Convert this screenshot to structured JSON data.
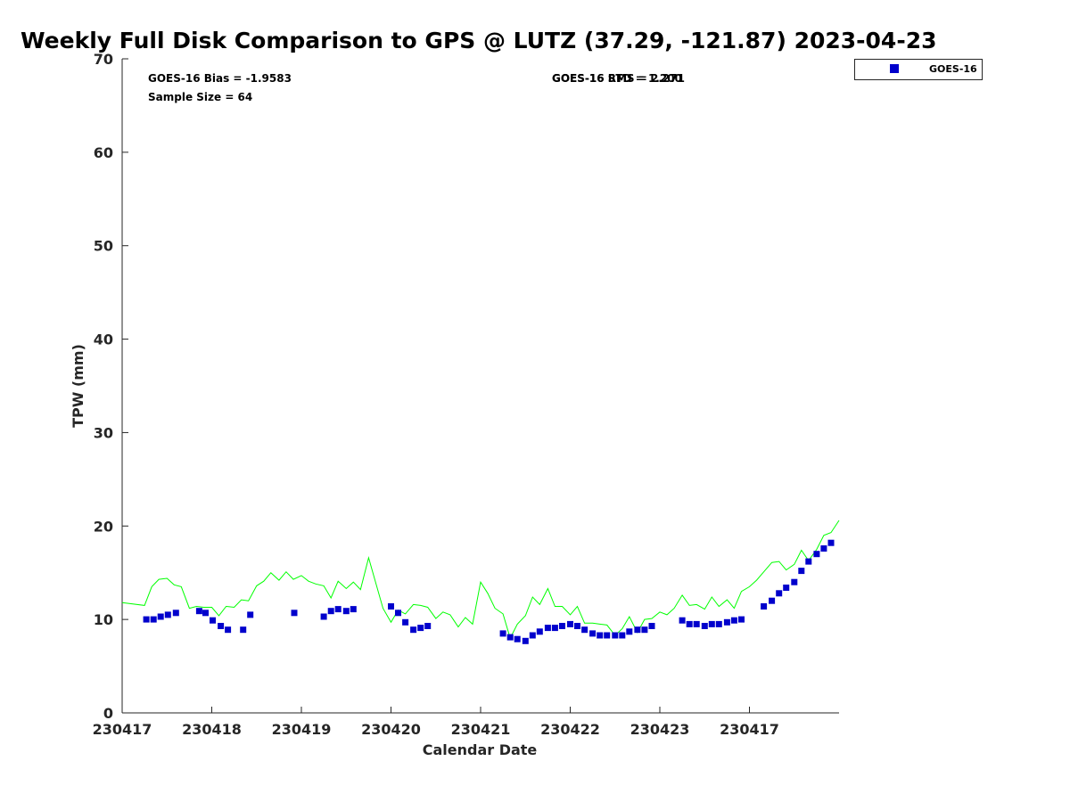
{
  "chart_data": {
    "type": "scatter",
    "title": "Weekly Full Disk Comparison to GPS @ LUTZ (37.29, -121.87) 2023-04-23",
    "xlabel": "Calendar Date",
    "ylabel": "TPW (mm)",
    "ylim": [
      0,
      70
    ],
    "yticks": [
      0,
      10,
      20,
      30,
      40,
      50,
      60,
      70
    ],
    "xlim": [
      0,
      8
    ],
    "xticks": [
      0,
      1,
      2,
      3,
      4,
      5,
      6,
      7
    ],
    "xtick_labels": [
      "230417",
      "230418",
      "230419",
      "230420",
      "230421",
      "230422",
      "230423",
      "230417"
    ],
    "grid": false,
    "legend_position": "top-right",
    "annotations": {
      "bias": "GOES-16 Bias = -1.9583",
      "sample_size": "Sample Size = 64",
      "std_rms_a": "GOES-16 RMS = 2.271",
      "std_rms_b": "GOES-16 STD = 1.200"
    },
    "series": [
      {
        "name": "GOES-16",
        "kind": "scatter",
        "color": "#0000cc",
        "x": [
          0.27,
          0.35,
          0.43,
          0.51,
          0.6,
          0.86,
          0.93,
          1.01,
          1.1,
          1.18,
          1.35,
          1.43,
          1.92,
          2.25,
          2.33,
          2.41,
          2.5,
          2.58,
          3.0,
          3.08,
          3.16,
          3.25,
          3.33,
          3.41,
          4.25,
          4.33,
          4.41,
          4.5,
          4.58,
          4.66,
          4.75,
          4.83,
          4.91,
          5.0,
          5.08,
          5.16,
          5.25,
          5.33,
          5.41,
          5.5,
          5.58,
          5.66,
          5.75,
          5.83,
          5.91,
          6.25,
          6.33,
          6.41,
          6.5,
          6.58,
          6.66,
          6.75,
          6.83,
          6.91,
          7.16,
          7.25,
          7.33,
          7.41,
          7.5,
          7.58,
          7.66,
          7.75,
          7.83,
          7.91
        ],
        "y": [
          10.0,
          10.0,
          10.3,
          10.5,
          10.7,
          10.9,
          10.7,
          9.9,
          9.3,
          8.9,
          8.9,
          10.5,
          10.7,
          10.3,
          10.9,
          11.1,
          10.9,
          11.1,
          11.4,
          10.7,
          9.7,
          8.9,
          9.1,
          9.3,
          8.5,
          8.1,
          7.9,
          7.7,
          8.3,
          8.7,
          9.1,
          9.1,
          9.3,
          9.5,
          9.3,
          8.9,
          8.5,
          8.3,
          8.3,
          8.3,
          8.3,
          8.7,
          8.9,
          8.9,
          9.3,
          9.9,
          9.5,
          9.5,
          9.3,
          9.5,
          9.5,
          9.7,
          9.9,
          10.0,
          11.4,
          12.0,
          12.8,
          13.4,
          14.0,
          15.2,
          16.2,
          17.0,
          17.6,
          18.2
        ]
      },
      {
        "kind": "line",
        "color": "#00ff00",
        "x": [
          0.0,
          0.25,
          0.33,
          0.41,
          0.5,
          0.58,
          0.66,
          0.75,
          0.83,
          0.91,
          1.0,
          1.08,
          1.16,
          1.25,
          1.33,
          1.41,
          1.5,
          1.58,
          1.66,
          1.75,
          1.83,
          1.91,
          2.0,
          2.08,
          2.16,
          2.25,
          2.33,
          2.41,
          2.5,
          2.58,
          2.66,
          2.75,
          2.91,
          3.0,
          3.08,
          3.16,
          3.25,
          3.33,
          3.41,
          3.5,
          3.58,
          3.66,
          3.75,
          3.83,
          3.91,
          4.0,
          4.08,
          4.16,
          4.25,
          4.33,
          4.41,
          4.5,
          4.58,
          4.66,
          4.75,
          4.83,
          4.91,
          5.0,
          5.08,
          5.16,
          5.25,
          5.33,
          5.41,
          5.5,
          5.58,
          5.66,
          5.75,
          5.83,
          5.91,
          6.0,
          6.08,
          6.16,
          6.25,
          6.33,
          6.41,
          6.5,
          6.58,
          6.66,
          6.75,
          6.83,
          6.91,
          7.0,
          7.08,
          7.16,
          7.25,
          7.33,
          7.41,
          7.5,
          7.58,
          7.66,
          7.75,
          7.83,
          7.91,
          8.0
        ],
        "y": [
          11.8,
          11.5,
          13.5,
          14.3,
          14.4,
          13.7,
          13.5,
          11.2,
          11.4,
          11.3,
          11.3,
          10.4,
          11.4,
          11.3,
          12.1,
          12.0,
          13.6,
          14.1,
          15.0,
          14.2,
          15.1,
          14.3,
          14.7,
          14.1,
          13.8,
          13.6,
          12.3,
          14.1,
          13.3,
          14.0,
          13.2,
          16.6,
          11.2,
          9.7,
          11.0,
          10.6,
          11.6,
          11.5,
          11.3,
          10.1,
          10.8,
          10.5,
          9.2,
          10.2,
          9.5,
          14.0,
          12.8,
          11.2,
          10.6,
          8.0,
          9.5,
          10.4,
          12.4,
          11.6,
          13.3,
          11.4,
          11.4,
          10.5,
          11.4,
          9.6,
          9.6,
          9.5,
          9.4,
          8.3,
          9.0,
          10.3,
          8.6,
          10.0,
          10.1,
          10.8,
          10.5,
          11.2,
          12.6,
          11.5,
          11.6,
          11.1,
          12.4,
          11.4,
          12.1,
          11.2,
          13.0,
          13.5,
          14.2,
          15.1,
          16.1,
          16.2,
          15.3,
          15.9,
          17.4,
          16.3,
          17.5,
          19.0,
          19.3,
          20.6
        ]
      }
    ]
  }
}
